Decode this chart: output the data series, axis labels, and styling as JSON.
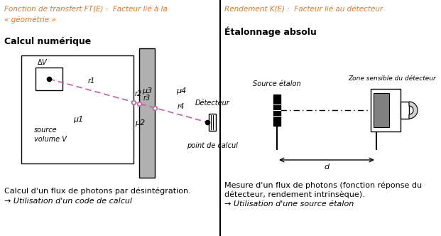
{
  "title_left": "Fonction de transfert FT(E) :  Facteur lié à la\n« géométrie »",
  "title_right": "Rendement K(E) :  Facteur lié au détecteur",
  "subtitle_left": "Calcul numérique",
  "subtitle_right": "Étalonnage absolu",
  "footer_left_1": "Calcul d'un flux de photons par désintégration.",
  "footer_left_2": "→ Utilisation d'un code de calcul",
  "footer_right_1": "Mesure d'un flux de photons (fonction réponse du\ndétecteur, rendement intrinsèque).",
  "footer_right_2": "→ Utilisation d'une source étalon",
  "orange_color": "#E87722",
  "ray_color": "#C060A0",
  "gray_slab": "#B0B0B0",
  "gray_det": "#808080"
}
